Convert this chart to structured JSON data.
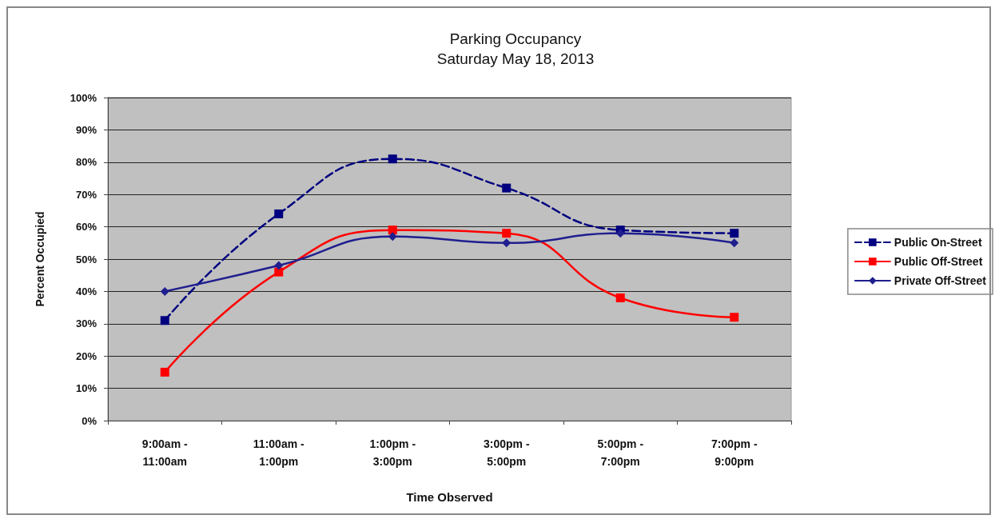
{
  "chart_data": {
    "type": "line",
    "title": "Parking Occupancy",
    "subtitle": "Saturday May 18, 2013",
    "xlabel": "Time Observed",
    "ylabel": "Percent Occupied",
    "categories": [
      "9:00am -\n11:00am",
      "11:00am -\n1:00pm",
      "1:00pm -\n3:00pm",
      "3:00pm -\n5:00pm",
      "5:00pm -\n7:00pm",
      "7:00pm -\n9:00pm"
    ],
    "series": [
      {
        "name": "Public On-Street",
        "color": "#000080",
        "values": [
          31,
          64,
          81,
          72,
          59,
          58
        ],
        "marker": "square",
        "line_style": "dashed"
      },
      {
        "name": "Public Off-Street",
        "color": "#ff0000",
        "values": [
          15,
          46,
          59,
          58,
          38,
          32
        ],
        "marker": "square",
        "line_style": "solid"
      },
      {
        "name": "Private Off-Street",
        "color": "#1f1f8f",
        "values": [
          40,
          48,
          57,
          55,
          58,
          55
        ],
        "marker": "diamond",
        "line_style": "solid"
      }
    ],
    "ylim": [
      0,
      100
    ],
    "yticks": [
      {
        "value": 0,
        "label": "0%"
      },
      {
        "value": 10,
        "label": "10%"
      },
      {
        "value": 20,
        "label": "20%"
      },
      {
        "value": 30,
        "label": "30%"
      },
      {
        "value": 40,
        "label": "40%"
      },
      {
        "value": 50,
        "label": "50%"
      },
      {
        "value": 60,
        "label": "60%"
      },
      {
        "value": 70,
        "label": "70%"
      },
      {
        "value": 80,
        "label": "80%"
      },
      {
        "value": 90,
        "label": "90%"
      },
      {
        "value": 100,
        "label": "100%"
      }
    ],
    "grid": "y",
    "legend": "right"
  }
}
